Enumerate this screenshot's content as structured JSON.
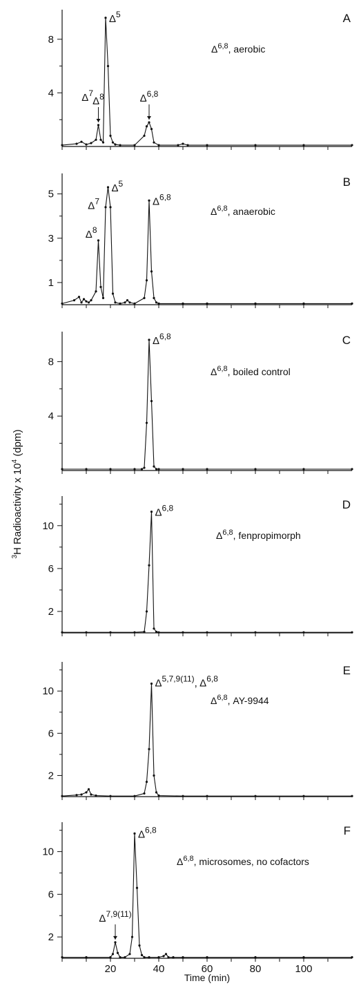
{
  "chart_data": {
    "type": "line",
    "ylabel_parts": [
      "3",
      "H Radioactivity  x 10",
      "4",
      " (dpm)"
    ],
    "xlabel": "Time (min)",
    "xlim": [
      0,
      120
    ],
    "x_ticks": [
      0,
      10,
      20,
      30,
      40,
      50,
      60,
      70,
      80,
      90,
      100,
      110
    ],
    "x_tick_labels": [
      "20",
      "40",
      "60",
      "80",
      "100"
    ],
    "x_tick_label_values": [
      20,
      40,
      60,
      80,
      100
    ],
    "panels": [
      {
        "letter": "A",
        "condition_sup": "6,8",
        "condition_text": ", aerobic",
        "ylim": [
          0,
          10
        ],
        "yticks": [
          4,
          8
        ],
        "yminor": [
          2,
          6
        ],
        "x": [
          0,
          6,
          8,
          10,
          12,
          14,
          15,
          16,
          17,
          18,
          19,
          20,
          21,
          22,
          24,
          30,
          34,
          35,
          36,
          37,
          38,
          40,
          48,
          50,
          52,
          60,
          80,
          100,
          120
        ],
        "y": [
          0.1,
          0.2,
          0.35,
          0.15,
          0.25,
          0.5,
          1.6,
          0.5,
          0.3,
          9.6,
          6.0,
          0.8,
          0.3,
          0.15,
          0.1,
          0.1,
          0.8,
          1.5,
          1.8,
          1.3,
          0.3,
          0.1,
          0.1,
          0.2,
          0.1,
          0.1,
          0.1,
          0.1,
          0.1
        ],
        "annotations": [
          {
            "sup": "5",
            "x": 18,
            "y": 9.6,
            "arrow": false
          },
          {
            "sup": "7",
            "x": 14,
            "y": 3.6,
            "arrow": false
          },
          {
            "sup": "8",
            "x": 15,
            "y": 1.6,
            "arrow": true
          },
          {
            "sup": "6,8",
            "x": 36,
            "y": 1.8,
            "arrow": true
          }
        ]
      },
      {
        "letter": "B",
        "condition_sup": "6,8",
        "condition_text": ", anaerobic",
        "ylim": [
          0,
          5.8
        ],
        "yticks": [
          1,
          3,
          5
        ],
        "yminor": [
          2,
          4
        ],
        "x": [
          0,
          5,
          7,
          8,
          9,
          10,
          11,
          12,
          14,
          15,
          16,
          17,
          18,
          19,
          20,
          21,
          22,
          24,
          26,
          27,
          28,
          30,
          34,
          35,
          36,
          37,
          38,
          39,
          40,
          50,
          60,
          80,
          100,
          120
        ],
        "y": [
          0.05,
          0.2,
          0.35,
          0.1,
          0.25,
          0.15,
          0.1,
          0.2,
          0.6,
          2.9,
          0.8,
          0.3,
          4.4,
          5.3,
          4.4,
          0.5,
          0.1,
          0.05,
          0.1,
          0.2,
          0.1,
          0.05,
          0.3,
          1.1,
          4.7,
          1.5,
          0.3,
          0.1,
          0.05,
          0.05,
          0.05,
          0.05,
          0.05,
          0.05
        ],
        "annotations": [
          {
            "sup": "5",
            "x": 19,
            "y": 5.3,
            "arrow": false
          },
          {
            "sup": "7",
            "x": 16,
            "y": 4.2,
            "arrow": false
          },
          {
            "sup": "8",
            "x": 15,
            "y": 2.9,
            "arrow": false
          },
          {
            "sup": "6,8",
            "x": 36,
            "y": 4.7,
            "arrow": false
          }
        ]
      },
      {
        "letter": "C",
        "condition_sup": "6,8",
        "condition_text": ", boiled control",
        "ylim": [
          0,
          10
        ],
        "yticks": [
          4,
          8
        ],
        "yminor": [
          2,
          6
        ],
        "x": [
          0,
          10,
          20,
          30,
          33,
          34,
          35,
          36,
          37,
          38,
          39,
          40,
          50,
          60,
          80,
          100,
          120
        ],
        "y": [
          0.1,
          0.1,
          0.1,
          0.1,
          0.1,
          0.2,
          3.5,
          9.6,
          5.1,
          0.3,
          0.1,
          0.1,
          0.1,
          0.1,
          0.1,
          0.1,
          0.1
        ],
        "annotations": [
          {
            "sup": "6,8",
            "x": 36,
            "y": 9.6,
            "arrow": false
          }
        ]
      },
      {
        "letter": "D",
        "condition_sup": "6,8",
        "condition_text": ", fenpropimorph",
        "ylim": [
          0,
          12.5
        ],
        "yticks": [
          2,
          6,
          10
        ],
        "yminor": [
          4,
          8,
          12
        ],
        "x": [
          0,
          10,
          20,
          30,
          34,
          35,
          36,
          37,
          38,
          39,
          40,
          50,
          60,
          80,
          100,
          120
        ],
        "y": [
          0.05,
          0.05,
          0.05,
          0.05,
          0.1,
          2.0,
          6.3,
          11.3,
          0.4,
          0.1,
          0.05,
          0.05,
          0.05,
          0.05,
          0.05,
          0.05
        ],
        "annotations": [
          {
            "sup": "6,8",
            "x": 37,
            "y": 11.3,
            "arrow": false
          }
        ]
      },
      {
        "letter": "E",
        "condition_sup": "6,8",
        "condition_text": ", AY-9944",
        "ylim": [
          0,
          12.5
        ],
        "yticks": [
          2,
          6,
          10
        ],
        "yminor": [
          4,
          8,
          12
        ],
        "x": [
          0,
          6,
          8,
          10,
          11,
          12,
          14,
          20,
          30,
          34,
          35,
          36,
          37,
          38,
          39,
          40,
          50,
          60,
          80,
          100,
          120
        ],
        "y": [
          0.05,
          0.15,
          0.2,
          0.4,
          0.7,
          0.2,
          0.1,
          0.05,
          0.05,
          0.3,
          1.4,
          4.5,
          10.7,
          2.0,
          0.4,
          0.1,
          0.05,
          0.05,
          0.05,
          0.05,
          0.05
        ],
        "annotations": [
          {
            "sup": "5,7,9(11)",
            "sup2": "6,8",
            "x": 37,
            "y": 10.7,
            "arrow": false
          }
        ]
      },
      {
        "letter": "F",
        "condition_sup": "6,8",
        "condition_text": ", microsomes, no cofactors",
        "ylim": [
          0,
          12.5
        ],
        "yticks": [
          2,
          6,
          10
        ],
        "yminor": [
          4,
          8,
          12
        ],
        "x": [
          0,
          10,
          20,
          21,
          22,
          23,
          24,
          26,
          28,
          29,
          30,
          31,
          32,
          33,
          34,
          36,
          40,
          42,
          43,
          44,
          46,
          50,
          60,
          80,
          100,
          120
        ],
        "y": [
          0.1,
          0.1,
          0.1,
          0.4,
          1.5,
          0.5,
          0.1,
          0.1,
          0.4,
          2.0,
          11.7,
          6.6,
          1.2,
          0.3,
          0.1,
          0.1,
          0.1,
          0.2,
          0.4,
          0.1,
          0.1,
          0.1,
          0.1,
          0.1,
          0.1,
          0.1
        ],
        "annotations": [
          {
            "sup": "7,9(11)",
            "x": 22,
            "y": 1.5,
            "arrow": true
          },
          {
            "sup": "6,8",
            "x": 30,
            "y": 11.7,
            "arrow": false
          }
        ]
      }
    ]
  }
}
